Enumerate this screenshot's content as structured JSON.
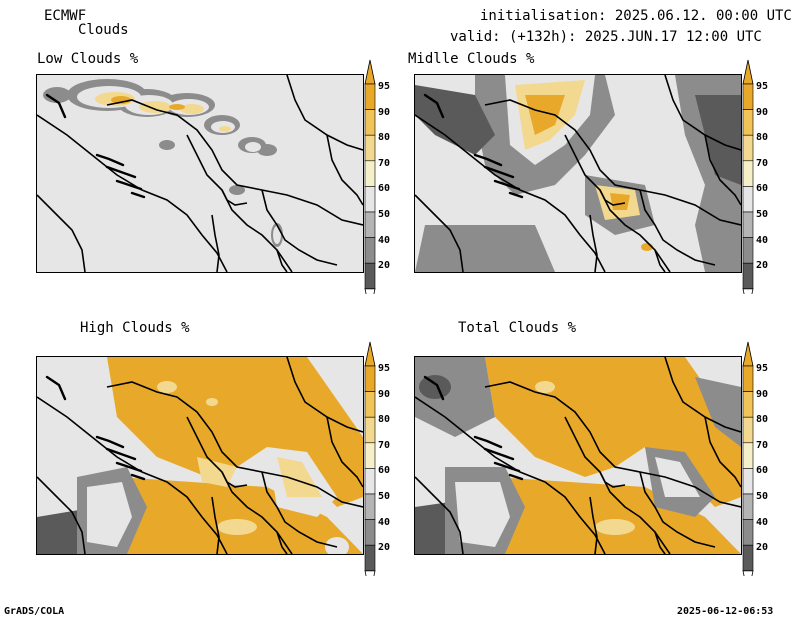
{
  "header": {
    "model": "ECMWF",
    "product": "Clouds",
    "init": "initialisation: 2025.06.12. 00:00 UTC",
    "valid": "valid: (+132h): 2025.JUN.17 12:00 UTC"
  },
  "panels": [
    {
      "title": "Low Clouds %"
    },
    {
      "title": "Midlle Clouds %"
    },
    {
      "title": "High Clouds %"
    },
    {
      "title": "Total Clouds %"
    }
  ],
  "colorbar": {
    "labels": [
      "95",
      "90",
      "80",
      "70",
      "60",
      "50",
      "40",
      "20"
    ],
    "colors": {
      "c95": "#e8a92b",
      "c90": "#f0c458",
      "c80": "#f3d98f",
      "c70": "#f5f0c8",
      "c60": "#e6e6e6",
      "c50": "#b4b4b4",
      "c40": "#8c8c8c",
      "c20": "#5a5a5a",
      "below": "#ffffff"
    }
  },
  "footer": {
    "left": "GrADS/COLA",
    "right": "2025-06-12-06:53"
  }
}
